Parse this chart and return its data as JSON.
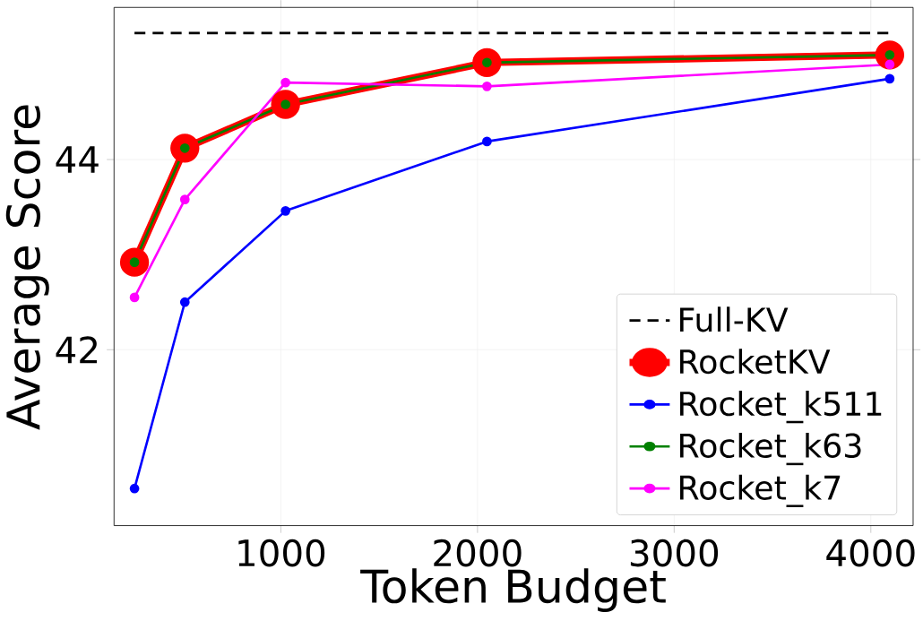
{
  "chart_data": {
    "type": "line",
    "xlabel": "Token Budget",
    "ylabel": "Average Score",
    "x": [
      256,
      512,
      1024,
      2048,
      4096
    ],
    "series": [
      {
        "name": "Full-KV",
        "color": "#000000",
        "values": [
          45.33,
          45.33,
          45.33,
          45.33,
          45.33
        ],
        "line_style": "dashed",
        "marker": "none"
      },
      {
        "name": "RocketKV",
        "color": "#ff0000",
        "values": [
          42.92,
          44.12,
          44.58,
          45.02,
          45.1
        ],
        "marker": "circle"
      },
      {
        "name": "Rocket_k511",
        "color": "#0000ff",
        "values": [
          40.54,
          42.5,
          43.46,
          44.19,
          44.85
        ],
        "marker": "circle"
      },
      {
        "name": "Rocket_k63",
        "color": "#008000",
        "values": [
          42.92,
          44.12,
          44.58,
          45.02,
          45.1
        ],
        "marker": "circle"
      },
      {
        "name": "Rocket_k7",
        "color": "#ff00ff",
        "values": [
          42.55,
          43.58,
          44.81,
          44.77,
          45.0
        ],
        "marker": "circle"
      }
    ],
    "xlim": [
      152,
      4215
    ],
    "ylim": [
      40.15,
      45.6
    ],
    "xticks": [
      1000,
      2000,
      3000,
      4000
    ],
    "yticks": [
      42,
      44
    ],
    "grid": true,
    "legend": "bottom right"
  }
}
